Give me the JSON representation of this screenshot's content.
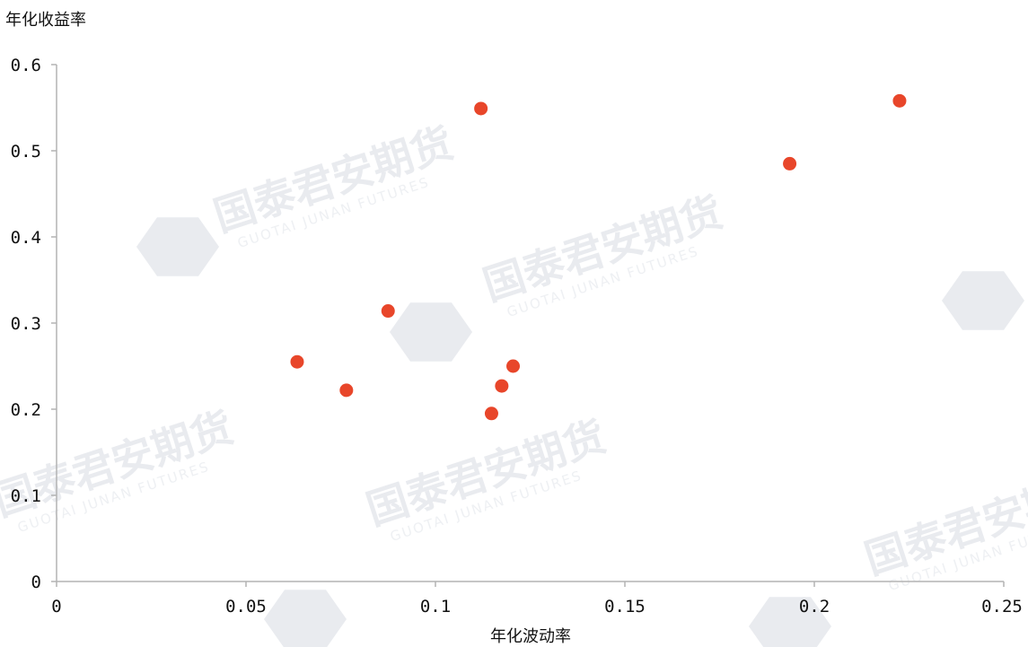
{
  "watermark": {
    "brand": "国泰君安期货",
    "brand_en": "GUOTAI JUNAN FUTURES"
  },
  "colors": {
    "point": "#e8462a",
    "axis": "#b3b3b3",
    "watermark": "#e9ebef"
  },
  "chart_data": {
    "type": "scatter",
    "xlabel": "年化波动率",
    "ylabel": "年化收益率",
    "xlim": [
      0,
      0.25
    ],
    "ylim": [
      0,
      0.6
    ],
    "x_ticks": [
      "0",
      "0.05",
      "0.1",
      "0.15",
      "0.2",
      "0.25"
    ],
    "y_ticks": [
      "0",
      "0.1",
      "0.2",
      "0.3",
      "0.4",
      "0.5",
      "0.6"
    ],
    "grid": false,
    "points": [
      {
        "x": 0.0635,
        "y": 0.255
      },
      {
        "x": 0.0765,
        "y": 0.222
      },
      {
        "x": 0.0875,
        "y": 0.314
      },
      {
        "x": 0.112,
        "y": 0.549
      },
      {
        "x": 0.1148,
        "y": 0.195
      },
      {
        "x": 0.1175,
        "y": 0.227
      },
      {
        "x": 0.1205,
        "y": 0.25
      },
      {
        "x": 0.1935,
        "y": 0.485
      },
      {
        "x": 0.2225,
        "y": 0.558
      }
    ]
  }
}
